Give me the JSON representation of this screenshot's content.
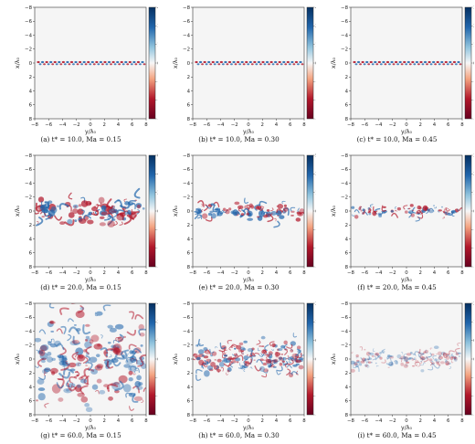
{
  "figure": {
    "axis_labels": {
      "y": "y/λ₀",
      "x": "x/λ₀"
    },
    "panels": [
      {
        "caption": "(a) t* = 10.0, Ma = 0.15",
        "stage": 10,
        "colorbar_ticks": [
          "4.700",
          "3.133",
          "1.567",
          "0.000",
          "−1.567",
          "−3.133",
          "−4.700"
        ]
      },
      {
        "caption": "(b) t* = 10.0, Ma = 0.30",
        "stage": 10,
        "colorbar_ticks": [
          "4.300",
          "2.867",
          "1.433",
          "0.000",
          "−1.433",
          "−2.867",
          "−4.300"
        ]
      },
      {
        "caption": "(c) t* = 10.0, Ma = 0.45",
        "stage": 10,
        "colorbar_ticks": [
          "3.800",
          "2.533",
          "1.267",
          "0.000",
          "−1.267",
          "−2.533",
          "−3.800"
        ]
      },
      {
        "caption": "(d) t* = 20.0, Ma = 0.15",
        "stage": 20,
        "colorbar_ticks": [
          "6.20",
          "4.13",
          "2.07",
          "0.00",
          "−2.07",
          "−4.13",
          "−6.20"
        ]
      },
      {
        "caption": "(e) t* = 20.0, Ma = 0.30",
        "stage": 20,
        "colorbar_ticks": [
          "5.30",
          "3.53",
          "1.77",
          "0.00",
          "−1.77",
          "−3.53",
          "−5.30"
        ]
      },
      {
        "caption": "(f) t* = 20.0, Ma = 0.45",
        "stage": 20,
        "colorbar_ticks": [
          "3.700",
          "2.467",
          "1.233",
          "0.000",
          "−1.233",
          "−2.467",
          "−3.700"
        ]
      },
      {
        "caption": "(g) t* = 60.0, Ma = 0.15",
        "stage": 60,
        "colorbar_ticks": [
          "4.5",
          "3.0",
          "1.5",
          "0.0",
          "−1.5",
          "−3.0",
          "−4.5"
        ]
      },
      {
        "caption": "(h) t* = 60.0, Ma = 0.30",
        "stage": 60,
        "colorbar_ticks": [
          "2.500",
          "1.667",
          "0.833",
          "0.000",
          "−0.833",
          "−1.667",
          "−2.500"
        ]
      },
      {
        "caption": "(i) t* = 60.0, Ma = 0.45",
        "stage": 60,
        "colorbar_ticks": [
          "2.1",
          "1.4",
          "0.7",
          "0.0",
          "−0.7",
          "−1.4",
          "−2.1"
        ]
      }
    ],
    "x_ticks": [
      "−8",
      "−6",
      "−4",
      "−2",
      "0",
      "2",
      "4",
      "6",
      "8"
    ],
    "y_ticks": [
      "−8",
      "−6",
      "−4",
      "−2",
      "0",
      "2",
      "4",
      "6",
      "8"
    ],
    "colors": {
      "positive": "#2166ac",
      "negative": "#b2182b",
      "neutral": "#f7f7f7"
    }
  }
}
